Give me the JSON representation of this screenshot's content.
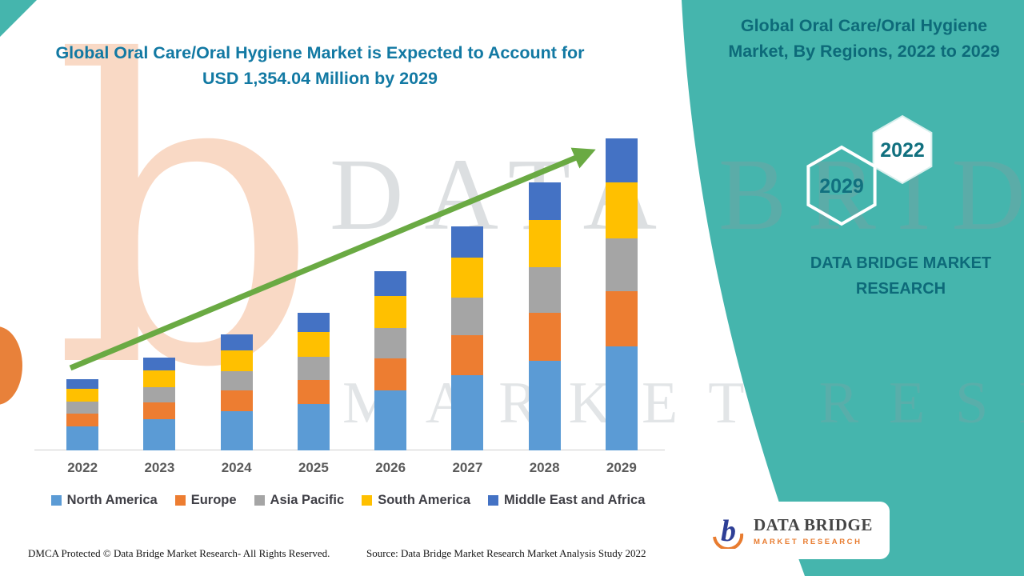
{
  "header": {
    "title": "Global Oral Care/Oral Hygiene Market is Expected to Account for USD 1,354.04 Million by 2029"
  },
  "right_panel": {
    "title": "Global Oral Care/Oral Hygiene Market, By Regions, 2022 to 2029",
    "hexagon_front": "2022",
    "hexagon_back": "2029",
    "brand_text": "DATA BRIDGE MARKET RESEARCH",
    "panel_color": "#45b5ad"
  },
  "watermark": {
    "line1": "DATA BRIDGE",
    "line2": "MARKET RESEARCH",
    "letter_b": "b"
  },
  "footer": {
    "dmca": "DMCA Protected © Data Bridge Market Research- All Rights Reserved.",
    "source": "Source: Data Bridge Market Research Market Analysis Study 2022"
  },
  "logo_card": {
    "name": "DATA BRIDGE",
    "subtitle": "MARKET RESEARCH"
  },
  "colors": {
    "accent_teal": "#45b5ad",
    "title_teal": "#1279a3",
    "dark_teal": "#0d6a79",
    "arrow_green": "#6aaa43",
    "brand_orange": "#e87c30"
  },
  "chart_data": {
    "type": "bar",
    "stacked": true,
    "title": "Global Oral Care/Oral Hygiene Market is Expected to Account for USD 1,354.04 Million by 2029",
    "unit": "USD Million",
    "categories": [
      "2022",
      "2023",
      "2024",
      "2025",
      "2026",
      "2027",
      "2028",
      "2029"
    ],
    "series": [
      {
        "name": "North America",
        "color": "#5B9BD5",
        "values": [
          105,
          135,
          170,
          200,
          260,
          325,
          390,
          450
        ]
      },
      {
        "name": "Europe",
        "color": "#ED7D31",
        "values": [
          55,
          72,
          90,
          107,
          140,
          174,
          208,
          243
        ]
      },
      {
        "name": "Asia Pacific",
        "color": "#A5A5A5",
        "values": [
          52,
          68,
          85,
          101,
          132,
          164,
          196,
          228
        ]
      },
      {
        "name": "South America",
        "color": "#FFC000",
        "values": [
          55,
          72,
          90,
          107,
          140,
          174,
          208,
          243
        ]
      },
      {
        "name": "Middle East and Africa",
        "color": "#4472C4",
        "values": [
          42,
          56,
          70,
          84,
          108,
          135,
          162,
          190
        ]
      }
    ],
    "totals": [
      309,
      403,
      505,
      599,
      780,
      972,
      1164,
      1354
    ],
    "ylim": [
      0,
      1400
    ],
    "xlabel": "",
    "ylabel": "",
    "gridlines": false,
    "legend_position": "bottom",
    "annotation": "green upward growth trend arrow from 2022 to 2029"
  }
}
